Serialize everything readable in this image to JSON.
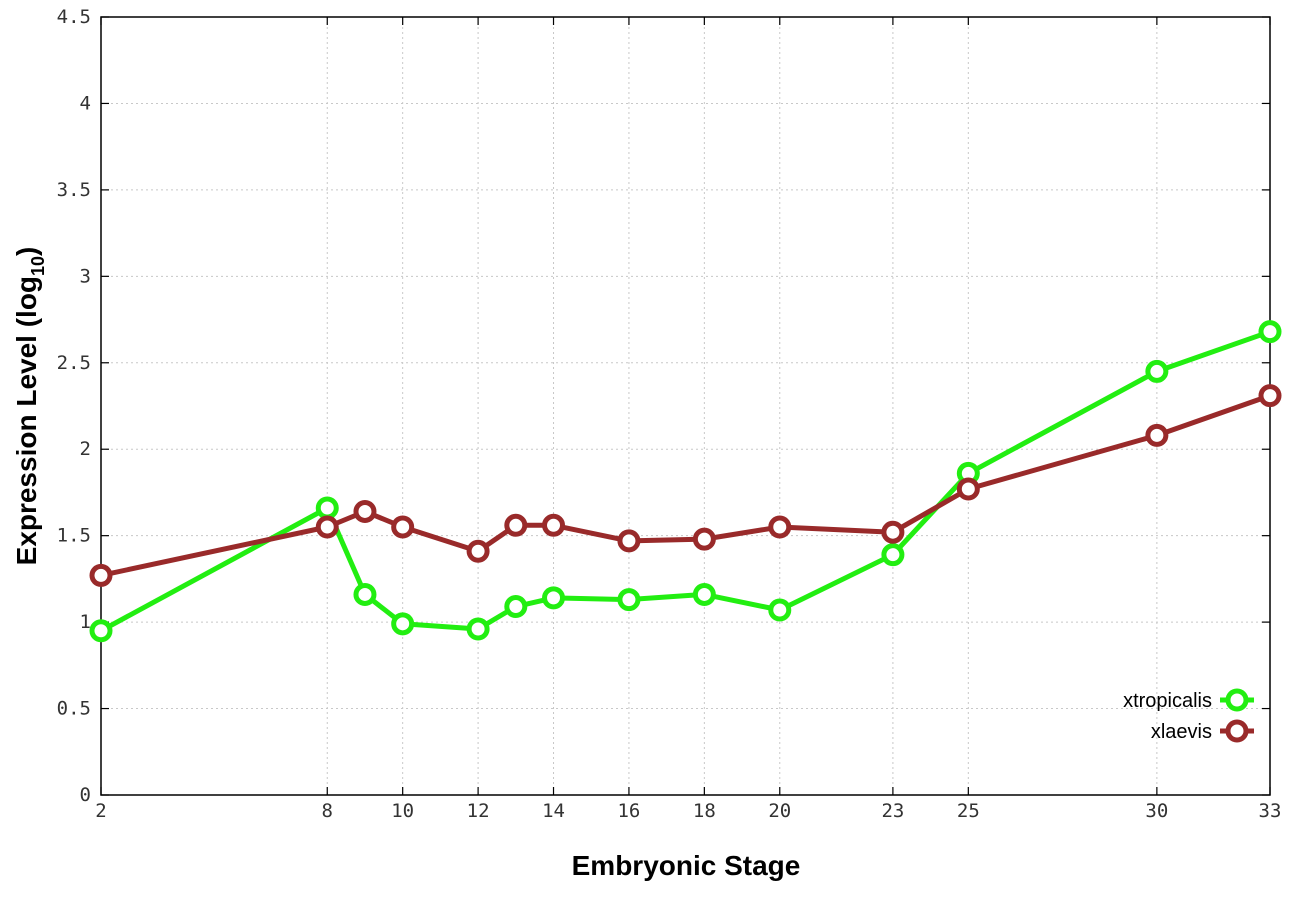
{
  "chart_data": {
    "type": "line",
    "title": "",
    "xlabel": "Embryonic Stage",
    "ylabel_main": "Expression Level (log",
    "ylabel_sub": "10",
    "ylabel_close": ")",
    "x": [
      2,
      8,
      9,
      10,
      12,
      13,
      14,
      16,
      18,
      20,
      23,
      25,
      30,
      33
    ],
    "x_tick_labels": [
      "2",
      "8",
      "10",
      "12",
      "14",
      "16",
      "18",
      "20",
      "23",
      "25",
      "30",
      "33"
    ],
    "x_tick_values": [
      2,
      8,
      10,
      12,
      14,
      16,
      18,
      20,
      23,
      25,
      30,
      33
    ],
    "y_tick_labels": [
      "0",
      "0.5",
      "1",
      "1.5",
      "2",
      "2.5",
      "3",
      "3.5",
      "4",
      "4.5"
    ],
    "y_tick_values": [
      0,
      0.5,
      1,
      1.5,
      2,
      2.5,
      3,
      3.5,
      4,
      4.5
    ],
    "xlim": [
      2,
      33
    ],
    "ylim": [
      0,
      4.5
    ],
    "grid": true,
    "legend_position": "bottom-right",
    "series": [
      {
        "name": "xtropicalis",
        "color": "#22ee11",
        "values": [
          0.95,
          1.66,
          1.16,
          0.99,
          0.96,
          1.09,
          1.14,
          1.13,
          1.16,
          1.07,
          1.39,
          1.86,
          2.45,
          2.68
        ]
      },
      {
        "name": "xlaevis",
        "color": "#992a2a",
        "values": [
          1.27,
          1.55,
          1.64,
          1.55,
          1.41,
          1.56,
          1.56,
          1.47,
          1.48,
          1.55,
          1.52,
          1.77,
          2.08,
          2.31
        ]
      }
    ]
  }
}
